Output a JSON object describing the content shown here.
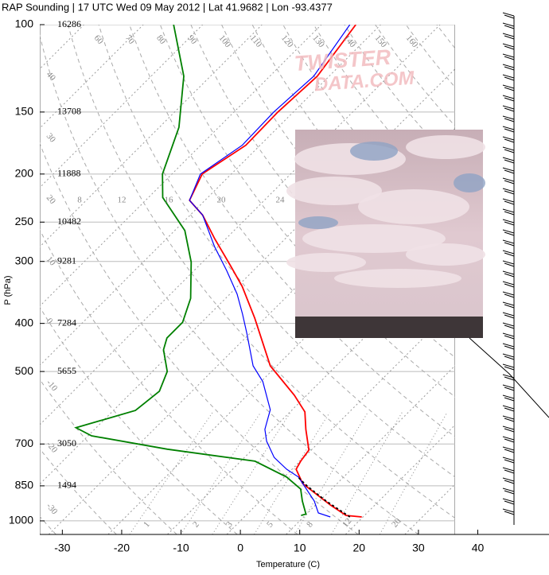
{
  "chart_data": {
    "type": "skewt",
    "title": "RAP Sounding | 17 UTC Wed 09 May 2012 | Lat 41.9682 | Lon -93.4377",
    "ylabel": "P (hPa)",
    "xlabel": "Temperature (C)",
    "xlim": [
      -33.8,
      52.0
    ],
    "ylim": [
      1065,
      100
    ],
    "ylog": true,
    "grid": true,
    "xticks": [
      -30,
      -20,
      -10,
      0,
      10,
      20,
      30,
      40
    ],
    "yticks": [
      100,
      150,
      200,
      250,
      300,
      400,
      500,
      700,
      850,
      1000
    ],
    "height_labels": [
      16286,
      13708,
      11888,
      10482,
      9281,
      7284,
      5655,
      3050,
      1494,
      null
    ],
    "adiabat_labels": [
      60,
      70,
      80,
      90,
      100,
      110,
      120,
      130,
      140,
      150,
      160
    ],
    "left_labels": [
      40,
      30,
      20,
      10,
      0,
      -10,
      -20,
      -30
    ],
    "wet_adiabat_labels": [
      8,
      12,
      16,
      20,
      24
    ],
    "mixing_ratio_labels": [
      1,
      2,
      3,
      5,
      8,
      12,
      20
    ],
    "watermark": [
      "TWISTER",
      "DATA.COM"
    ],
    "series": [
      {
        "color": "#ff0000",
        "pressure": [
          982,
          975,
          929,
          841,
          787,
          758,
          720,
          654,
          603,
          558,
          487,
          390,
          337,
          307,
          270,
          242,
          226,
          200,
          175,
          150,
          127,
          100
        ],
        "values": [
          19.8,
          16.9,
          12.5,
          4.2,
          0.7,
          0.1,
          -0.4,
          -4.4,
          -7.5,
          -12.1,
          -21.1,
          -31.8,
          -39.2,
          -44.5,
          -51.9,
          -57.9,
          -62.6,
          -64.9,
          -62.4,
          -62.6,
          -62,
          -64.2
        ]
      },
      {
        "color": "#0000ff",
        "pressure": [
          982,
          964,
          912,
          816,
          787,
          745,
          691,
          654,
          597,
          524,
          487,
          420,
          383,
          349,
          313,
          280,
          242,
          226,
          200,
          175,
          150,
          127,
          100
        ],
        "values": [
          14.5,
          11.8,
          9.1,
          2.4,
          -0.9,
          -5.0,
          -9.0,
          -11.3,
          -13.7,
          -19.7,
          -24.0,
          -30.4,
          -34.5,
          -38.8,
          -44.5,
          -50.6,
          -57.9,
          -62.6,
          -65.2,
          -63.0,
          -63.3,
          -62.6,
          -65.2
        ]
      },
      {
        "color": "#008000",
        "pressure": [
          975,
          969,
          912,
          863,
          816,
          758,
          717,
          674,
          649,
          599,
          548,
          500,
          452,
          428,
          398,
          356,
          301,
          260,
          223,
          200,
          161,
          127,
          100
        ],
        "values": [
          9.3,
          9.9,
          7.1,
          4.8,
          0.4,
          -7.6,
          -24.4,
          -39.4,
          -43.4,
          -36.3,
          -35.5,
          -37.5,
          -41.8,
          -43.2,
          -43.2,
          -45.9,
          -51.9,
          -58.3,
          -67.6,
          -71.6,
          -76.7,
          -84.5,
          -94.9
        ]
      },
      {
        "color": "#000000",
        "dash": true,
        "pressure": [
          982,
          912,
          851,
          816
        ],
        "values": [
          17.8,
          11.1,
          5.4,
          2.3
        ]
      }
    ]
  }
}
